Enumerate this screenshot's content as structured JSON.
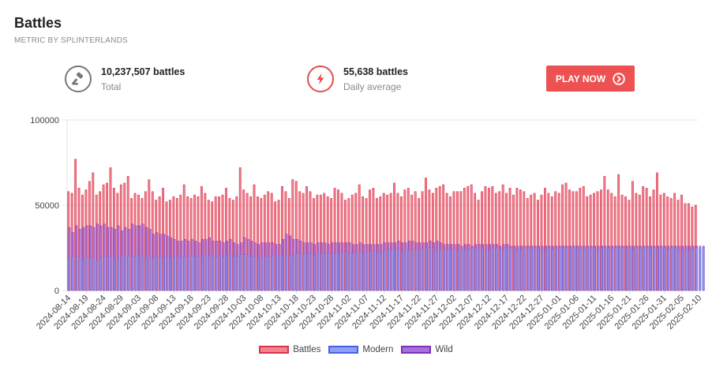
{
  "header": {
    "title": "Battles",
    "subtitle": "METRIC BY SPLINTERLANDS"
  },
  "stats": {
    "total": {
      "value": "10,237,507 battles",
      "caption": "Total",
      "icon": "gavel-icon"
    },
    "daily": {
      "value": "55,638 battles",
      "caption": "Daily average",
      "icon": "lightning-bolt-icon"
    }
  },
  "play_button": {
    "label": "PLAY NOW",
    "icon": "chevron-right-circle-icon"
  },
  "colors": {
    "battles_fill": "#f2838f",
    "battles_border": "#d9334d",
    "modern_fill": "#8f9ff7",
    "modern_border": "#4a60e0",
    "wild_fill": "#a571dd",
    "wild_border": "#7f2fb2",
    "accent": "#ee5151"
  },
  "chart_data": {
    "type": "bar",
    "y_ticks": [
      "0",
      "50000",
      "100000"
    ],
    "ylim": [
      0,
      100000
    ],
    "grid": true,
    "legend_position": "bottom",
    "x_ticks": [
      "2024-08-14",
      "2024-08-19",
      "2024-08-24",
      "2024-08-29",
      "2024-09-03",
      "2024-09-08",
      "2024-09-13",
      "2024-09-18",
      "2024-09-23",
      "2024-09-28",
      "2024-10-03",
      "2024-10-08",
      "2024-10-13",
      "2024-10-18",
      "2024-10-23",
      "2024-10-28",
      "2024-11-02",
      "2024-11-07",
      "2024-11-12",
      "2024-11-17",
      "2024-11-22",
      "2024-11-27",
      "2024-12-02",
      "2024-12-07",
      "2024-12-12",
      "2024-12-17",
      "2024-12-22",
      "2024-12-27",
      "2025-01-01",
      "2025-01-06",
      "2025-01-11",
      "2025-01-16",
      "2025-01-21",
      "2025-01-26",
      "2025-01-31",
      "2025-02-05",
      "2025-02-10"
    ],
    "series": [
      {
        "name": "Battles",
        "values": [
          58000,
          57000,
          77000,
          60000,
          56000,
          59000,
          64000,
          69000,
          56000,
          58000,
          62000,
          63000,
          72000,
          60000,
          57000,
          62000,
          63000,
          67000,
          54000,
          57000,
          56000,
          54000,
          58000,
          65000,
          58000,
          53000,
          55000,
          60000,
          52000,
          53000,
          55000,
          54000,
          56000,
          62000,
          55000,
          54000,
          56000,
          55000,
          61000,
          57000,
          53000,
          52000,
          55000,
          55000,
          56000,
          60000,
          54000,
          53000,
          55000,
          72000,
          59000,
          57000,
          55000,
          62000,
          55000,
          54000,
          56000,
          58000,
          57000,
          52000,
          53000,
          61000,
          58000,
          54000,
          65000,
          64000,
          58000,
          57000,
          61000,
          58000,
          54000,
          56000,
          56000,
          57000,
          55000,
          54000,
          60000,
          59000,
          57000,
          53000,
          54000,
          56000,
          57000,
          62000,
          55000,
          54000,
          59000,
          60000,
          54000,
          55000,
          57000,
          56000,
          57000,
          63000,
          57000,
          55000,
          59000,
          60000,
          56000,
          58000,
          54000,
          58000,
          66000,
          59000,
          57000,
          60000,
          61000,
          62000,
          57000,
          55000,
          58000,
          58000,
          58000,
          60000,
          61000,
          62000,
          57000,
          53000,
          58000,
          61000,
          60000,
          61000,
          57000,
          58000,
          62000,
          57000,
          60000,
          56000,
          60000,
          59000,
          58000,
          54000,
          56000,
          57000,
          53000,
          56000,
          60000,
          57000,
          55000,
          58000,
          57000,
          62000,
          63000,
          59000,
          58000,
          58000,
          60000,
          61000,
          55000,
          56000,
          57000,
          58000,
          59000,
          67000,
          59000,
          57000,
          55000,
          68000,
          56000,
          55000,
          53000,
          64000,
          57000,
          56000,
          61000,
          60000,
          55000,
          59000,
          69000,
          56000,
          57000,
          55000,
          54000,
          57000,
          53000,
          56000,
          51000,
          51000,
          49000,
          50000
        ]
      },
      {
        "name": "Modern",
        "values": [
          19000,
          20000,
          20000,
          19000,
          18000,
          20000,
          19000,
          19000,
          18000,
          19000,
          20000,
          20000,
          20000,
          19000,
          19000,
          20000,
          21000,
          21000,
          20000,
          20000,
          21000,
          20000,
          20000,
          20000,
          19000,
          20000,
          20000,
          19000,
          20000,
          19000,
          20000,
          20000,
          19000,
          20000,
          20000,
          21000,
          20000,
          20000,
          20000,
          21000,
          21000,
          20000,
          20000,
          21000,
          20000,
          21000,
          22000,
          20000,
          20000,
          21000,
          21000,
          21000,
          20000,
          20000,
          19000,
          20000,
          20000,
          20000,
          21000,
          21000,
          20000,
          20000,
          21000,
          21000,
          20000,
          22000,
          22000,
          21000,
          22000,
          22000,
          21000,
          22000,
          22000,
          22000,
          22000,
          22000,
          22000,
          22000,
          23000,
          23000,
          22000,
          22000,
          23000,
          23000,
          22000,
          23000,
          23000,
          23000,
          23000,
          22000,
          24000,
          24000,
          24000,
          24000,
          24000,
          24000,
          24000,
          24000,
          24000,
          24000,
          24000,
          25000,
          25000,
          25000,
          25000,
          24000,
          24000,
          24000,
          24000,
          24000,
          24000,
          24000,
          24000,
          24000,
          24000,
          25000,
          25000,
          25000,
          25000,
          24000,
          24000,
          25000,
          25000,
          24000,
          24000,
          25000,
          25000,
          25000,
          24000,
          24000,
          25000,
          25000,
          25000,
          25000,
          25000,
          24000,
          24000,
          25000,
          24000,
          25000,
          25000,
          25000,
          25000,
          25000,
          25000,
          25000,
          25000,
          24000,
          25000,
          25000,
          25000,
          24000,
          25000,
          25000,
          25000,
          25000,
          25000,
          25000,
          25000,
          25000,
          25000,
          24000,
          25000,
          25000,
          25000,
          25000,
          25000,
          25000,
          25000,
          25000,
          25000,
          24000,
          25000,
          25000,
          24000,
          24000,
          24000,
          24000,
          24000,
          25000,
          24000,
          25000
        ]
      },
      {
        "name": "Wild",
        "values": [
          37000,
          34000,
          38000,
          36000,
          37000,
          38000,
          38000,
          37000,
          39000,
          38000,
          39000,
          37000,
          37000,
          36000,
          38000,
          35000,
          37000,
          36000,
          39000,
          38000,
          38000,
          39000,
          37000,
          36000,
          33000,
          34000,
          33000,
          33000,
          32000,
          31000,
          30000,
          29000,
          29000,
          30000,
          29000,
          30000,
          29000,
          28000,
          30000,
          30000,
          31000,
          29000,
          29000,
          29000,
          28000,
          29000,
          30000,
          28000,
          27000,
          28000,
          31000,
          30000,
          29000,
          28000,
          27000,
          28000,
          28000,
          28000,
          28000,
          27000,
          27000,
          30000,
          33000,
          32000,
          30000,
          30000,
          29000,
          28000,
          28000,
          28000,
          27000,
          28000,
          28000,
          28000,
          27000,
          28000,
          28000,
          28000,
          28000,
          28000,
          28000,
          27000,
          27000,
          28000,
          27000,
          27000,
          27000,
          27000,
          27000,
          27000,
          28000,
          28000,
          28000,
          28000,
          29000,
          28000,
          28000,
          29000,
          29000,
          28000,
          28000,
          28000,
          28000,
          29000,
          28000,
          29000,
          28000,
          27000,
          27000,
          27000,
          27000,
          27000,
          26000,
          27000,
          27000,
          26000,
          27000,
          27000,
          27000,
          27000,
          27000,
          27000,
          27000,
          26000,
          27000,
          27000,
          26000,
          26000,
          26000,
          26000,
          26000,
          26000,
          26000,
          26000,
          26000,
          26000,
          26000,
          26000,
          26000,
          26000,
          26000,
          26000,
          26000,
          26000,
          26000,
          26000,
          26000,
          26000,
          26000,
          26000,
          26000,
          26000,
          26000,
          26000,
          26000,
          26000,
          26000,
          26000,
          26000,
          26000,
          26000,
          26000,
          26000,
          26000,
          26000,
          26000,
          26000,
          26000,
          26000,
          26000,
          26000,
          26000,
          26000,
          26000,
          26000,
          26000,
          26000,
          26000,
          26000,
          26000,
          26000,
          26000
        ]
      }
    ]
  }
}
